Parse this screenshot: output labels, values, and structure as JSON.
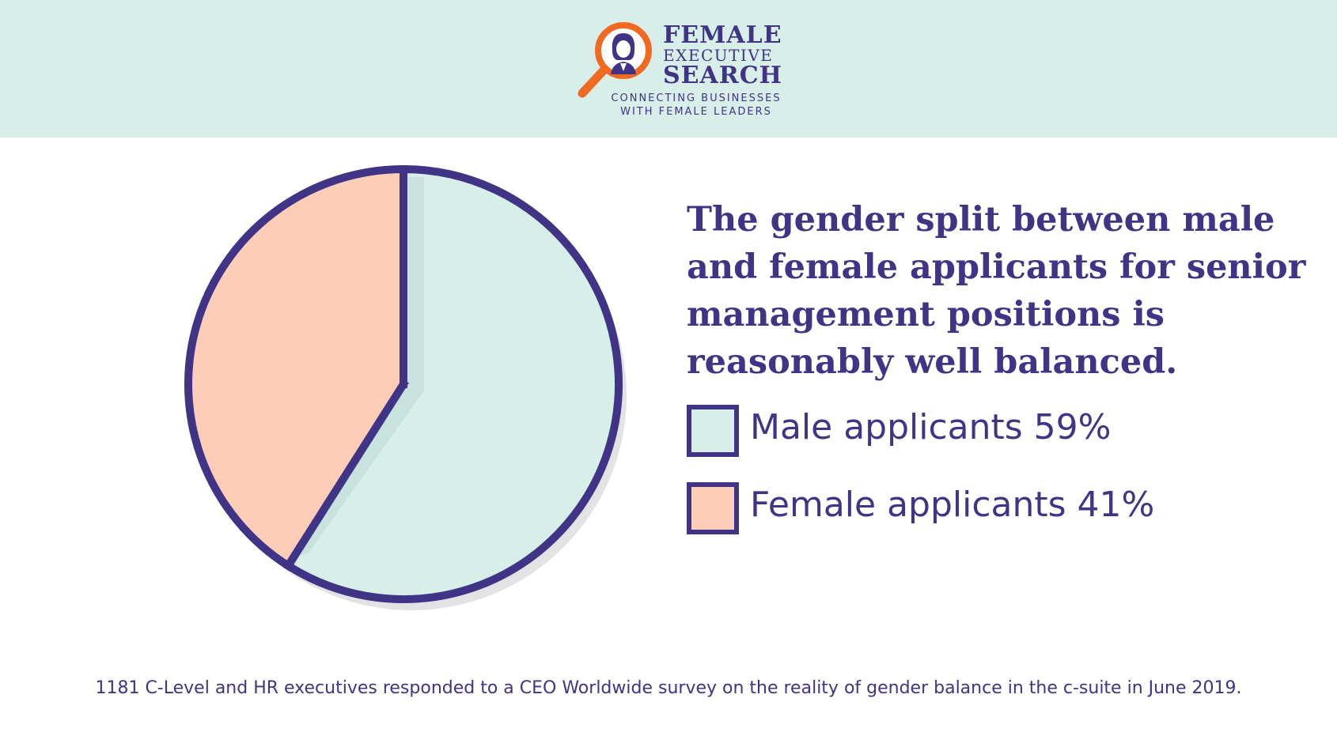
{
  "logo": {
    "line1": "FEMALE",
    "line2": "EXECUTIVE",
    "line3": "SEARCH",
    "tagline1": "CONNECTING BUSINESSES",
    "tagline2": "WITH FEMALE LEADERS"
  },
  "colors": {
    "header_bg": "#d7eee9",
    "male": "#d7eee9",
    "female": "#fdcdb7",
    "outline": "#3f3485",
    "accent_orange": "#f26a21"
  },
  "chart_data": {
    "type": "pie",
    "title": "The gender split between male and female applicants for senior management positions is reasonably well balanced.",
    "slices": [
      {
        "label": "Male applicants",
        "value": 59,
        "display": "Male applicants 59%",
        "color": "#d7eee9"
      },
      {
        "label": "Female applicants",
        "value": 41,
        "display": "Female applicants 41%",
        "color": "#fdcdb7"
      }
    ],
    "legend_position": "right"
  },
  "footnote": "1181 C-Level and HR executives responded to a CEO Worldwide survey on the reality of gender balance in the c-suite in June 2019."
}
